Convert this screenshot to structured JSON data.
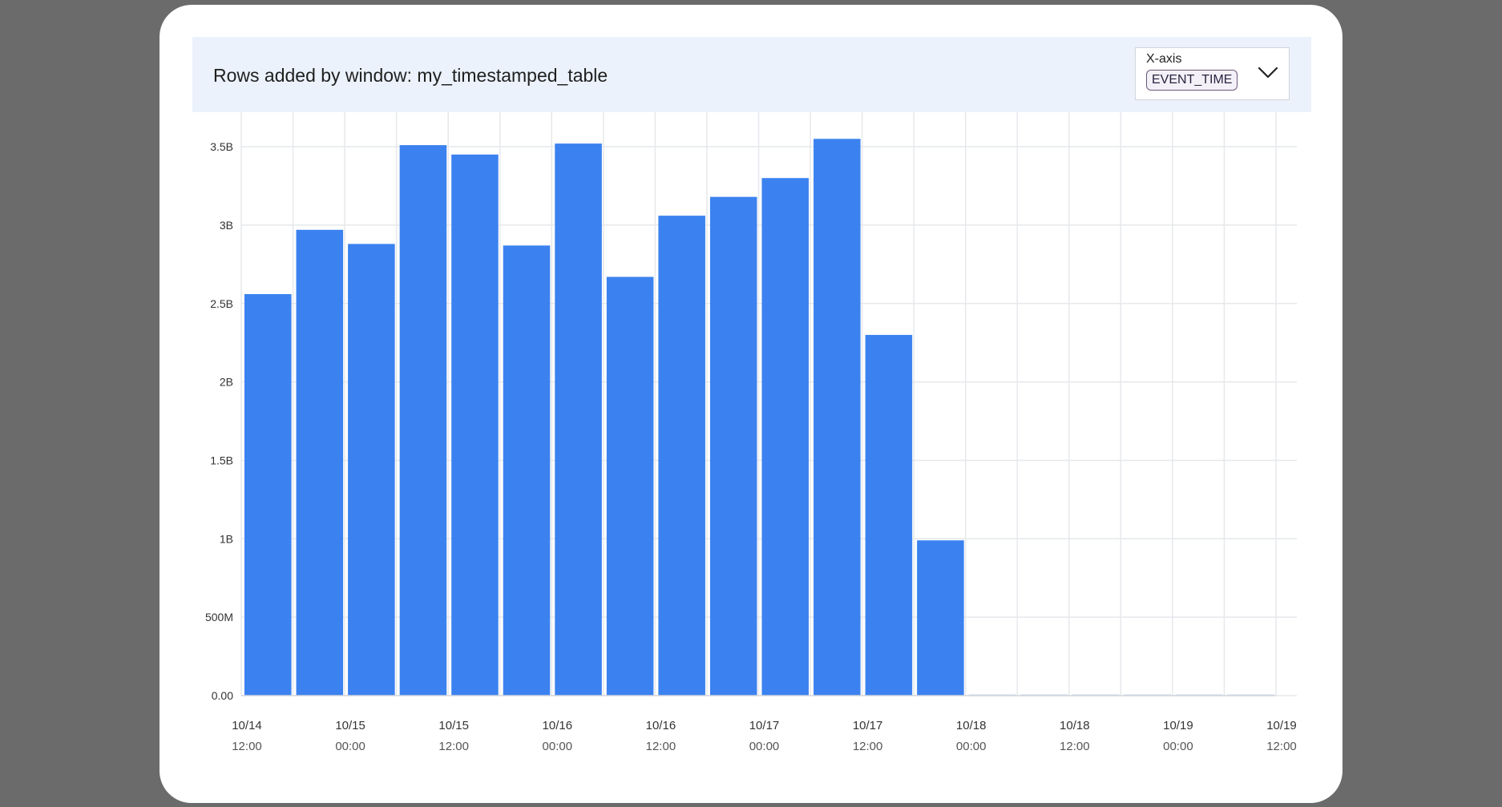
{
  "panel": {
    "title": "Rows added by window: my_timestamped_table",
    "xaxis_label": "X-axis",
    "xaxis_value": "EVENT_TIME",
    "dropdown_icon": "chevron-down-icon"
  },
  "colors": {
    "bar": "#3b82f0",
    "grid": "#e6e8eb",
    "header_bg": "#ebf2fc"
  },
  "chart_data": {
    "type": "bar",
    "title": "Rows added by window: my_timestamped_table",
    "xlabel": "",
    "ylabel": "",
    "ylim": [
      0,
      3720000000
    ],
    "grid": true,
    "y_ticks": [
      {
        "value": 0,
        "label": "0.00"
      },
      {
        "value": 500000000,
        "label": "500M"
      },
      {
        "value": 1000000000,
        "label": "1B"
      },
      {
        "value": 1500000000,
        "label": "1.5B"
      },
      {
        "value": 2000000000,
        "label": "2B"
      },
      {
        "value": 2500000000,
        "label": "2.5B"
      },
      {
        "value": 3000000000,
        "label": "3B"
      },
      {
        "value": 3500000000,
        "label": "3.5B"
      }
    ],
    "x_ticks": [
      {
        "date": "10/14",
        "time": "12:00"
      },
      {
        "date": "10/15",
        "time": "00:00"
      },
      {
        "date": "10/15",
        "time": "12:00"
      },
      {
        "date": "10/16",
        "time": "00:00"
      },
      {
        "date": "10/16",
        "time": "12:00"
      },
      {
        "date": "10/17",
        "time": "00:00"
      },
      {
        "date": "10/17",
        "time": "12:00"
      },
      {
        "date": "10/18",
        "time": "00:00"
      },
      {
        "date": "10/18",
        "time": "12:00"
      },
      {
        "date": "10/19",
        "time": "00:00"
      },
      {
        "date": "10/19",
        "time": "12:00"
      }
    ],
    "x_range": [
      "10/14 12:00",
      "10/19 12:00"
    ],
    "bin_hours": 6,
    "bars": [
      {
        "start": "10/14 12:00",
        "value": 2560000000
      },
      {
        "start": "10/14 18:00",
        "value": 2970000000
      },
      {
        "start": "10/15 00:00",
        "value": 2880000000
      },
      {
        "start": "10/15 06:00",
        "value": 3510000000
      },
      {
        "start": "10/15 12:00",
        "value": 3450000000
      },
      {
        "start": "10/15 18:00",
        "value": 2870000000
      },
      {
        "start": "10/16 00:00",
        "value": 3520000000
      },
      {
        "start": "10/16 06:00",
        "value": 2670000000
      },
      {
        "start": "10/16 12:00",
        "value": 3060000000
      },
      {
        "start": "10/16 18:00",
        "value": 3180000000
      },
      {
        "start": "10/17 00:00",
        "value": 3300000000
      },
      {
        "start": "10/17 06:00",
        "value": 3550000000
      },
      {
        "start": "10/17 12:00",
        "value": 2300000000
      },
      {
        "start": "10/17 18:00",
        "value": 990000000
      },
      {
        "start": "10/18 00:00",
        "value": 0
      },
      {
        "start": "10/18 06:00",
        "value": 0
      },
      {
        "start": "10/18 12:00",
        "value": 0
      },
      {
        "start": "10/18 18:00",
        "value": 0
      },
      {
        "start": "10/19 00:00",
        "value": 0
      },
      {
        "start": "10/19 06:00",
        "value": 0
      }
    ]
  }
}
